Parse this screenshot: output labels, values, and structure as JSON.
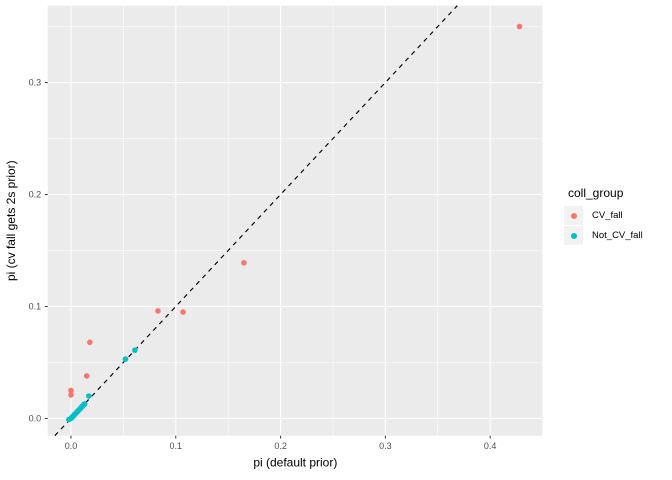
{
  "figure": {
    "background": "#FFFFFF",
    "panel_background": "#EBEBEB",
    "grid_color": "#FFFFFF",
    "tick_label_color": "#4D4D4D",
    "axis_title_color": "#000000",
    "tick_mark_color": "#333333"
  },
  "chart_data": {
    "type": "scatter",
    "title": "",
    "xlabel": "pi (default prior)",
    "ylabel": "pi (cv fall gets 2s prior)",
    "x_ticks": [
      0.0,
      0.1,
      0.2,
      0.3,
      0.4
    ],
    "y_ticks": [
      0.0,
      0.1,
      0.2,
      0.3
    ],
    "x_minor_ticks": [
      0.05,
      0.15,
      0.25,
      0.35,
      0.45
    ],
    "y_minor_ticks": [
      0.05,
      0.15,
      0.25,
      0.35
    ],
    "xlim": [
      -0.0222,
      0.4504
    ],
    "ylim": [
      -0.0154,
      0.3686
    ],
    "grid": "major and minor, white on gray panel",
    "legend_title": "coll_group",
    "legend_position": "right",
    "reference_line": {
      "type": "identity",
      "slope": 1,
      "intercept": 0,
      "style": "dashed",
      "color": "#000000"
    },
    "series": [
      {
        "name": "CV_fall",
        "color": "#F8766D",
        "points": [
          [
            0.428,
            0.35
          ],
          [
            0.165,
            0.139
          ],
          [
            0.107,
            0.095
          ],
          [
            0.083,
            0.096
          ],
          [
            0.018,
            0.068
          ],
          [
            0.015,
            0.038
          ],
          [
            0.0,
            0.025
          ],
          [
            0.0,
            0.021
          ]
        ]
      },
      {
        "name": "Not_CV_fall",
        "color": "#00BFC4",
        "points": [
          [
            0.061,
            0.061
          ],
          [
            0.052,
            0.053
          ],
          [
            0.017,
            0.02
          ],
          [
            -0.002,
            -0.001
          ],
          [
            0.0,
            0.0
          ],
          [
            0.001,
            0.001
          ],
          [
            0.002,
            0.002
          ],
          [
            0.003,
            0.003
          ],
          [
            0.004,
            0.004
          ],
          [
            0.005,
            0.005
          ],
          [
            0.006,
            0.006
          ],
          [
            0.007,
            0.007
          ],
          [
            0.008,
            0.008
          ],
          [
            0.009,
            0.009
          ],
          [
            0.01,
            0.01
          ],
          [
            0.011,
            0.011
          ],
          [
            0.012,
            0.012
          ],
          [
            0.013,
            0.013
          ]
        ]
      }
    ]
  }
}
